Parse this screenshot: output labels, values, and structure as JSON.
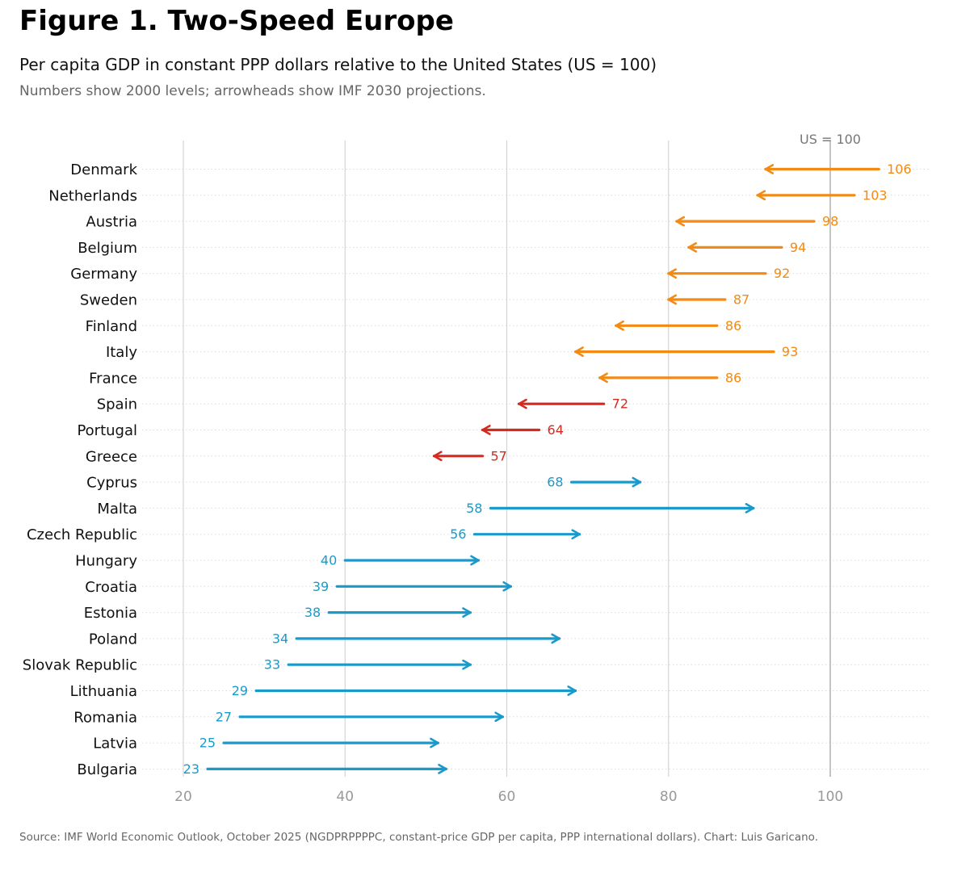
{
  "header": {
    "title": "Figure 1. Two-Speed Europe",
    "subtitle": "Per capita GDP in constant PPP dollars relative to the United States (US = 100)",
    "note": "Numbers show 2000 levels; arrowheads show IMF 2030 projections."
  },
  "footer": {
    "source": "Source: IMF World Economic Outlook, October 2025 (NGDPRPPPPC, constant-price GDP per capita, PPP international dollars). Chart: Luis Garicano."
  },
  "colors": {
    "orange": "#f28a13",
    "red": "#d42a1f",
    "blue": "#1a9acb",
    "grid": "#d4d4d4",
    "ref": "#bdbdbd"
  },
  "chart_data": {
    "type": "arrow",
    "x_ticks": [
      20,
      40,
      60,
      80,
      100
    ],
    "xlim": [
      15,
      112
    ],
    "grid": true,
    "reference_line": {
      "x": 100,
      "label": "US = 100"
    },
    "categories": [
      "Denmark",
      "Netherlands",
      "Austria",
      "Belgium",
      "Germany",
      "Sweden",
      "Finland",
      "Italy",
      "France",
      "Spain",
      "Portugal",
      "Greece",
      "Cyprus",
      "Malta",
      "Czech Republic",
      "Hungary",
      "Croatia",
      "Estonia",
      "Poland",
      "Slovak Republic",
      "Lithuania",
      "Romania",
      "Latvia",
      "Bulgaria"
    ],
    "series": [
      {
        "values_2000": [
          106,
          103,
          98,
          94,
          92,
          87,
          86,
          93,
          86,
          72,
          64,
          57,
          68,
          58,
          56,
          40,
          39,
          38,
          34,
          33,
          29,
          27,
          25,
          23
        ],
        "values_2030": [
          92,
          91,
          81,
          82.5,
          80,
          80,
          73.5,
          68.5,
          71.5,
          61.5,
          57,
          51,
          76.5,
          90.5,
          69,
          56.5,
          60.5,
          55.5,
          66.5,
          55.5,
          68.5,
          59.5,
          51.5,
          52.5
        ],
        "groups": [
          "orange",
          "orange",
          "orange",
          "orange",
          "orange",
          "orange",
          "orange",
          "orange",
          "orange",
          "red",
          "red",
          "red",
          "blue",
          "blue",
          "blue",
          "blue",
          "blue",
          "blue",
          "blue",
          "blue",
          "blue",
          "blue",
          "blue",
          "blue"
        ]
      }
    ]
  }
}
